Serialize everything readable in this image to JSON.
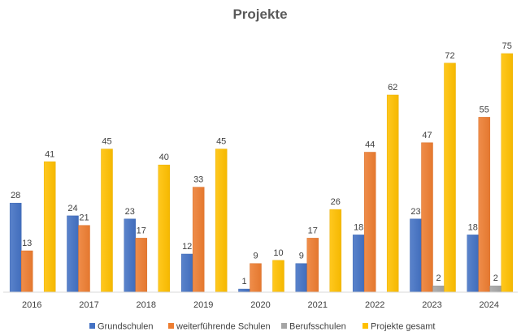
{
  "chart_data": {
    "type": "bar",
    "title": "Projekte",
    "categories": [
      "2016",
      "2017",
      "2018",
      "2019",
      "2020",
      "2021",
      "2022",
      "2023",
      "2024"
    ],
    "series": [
      {
        "name": "Grundschulen",
        "values": [
          28,
          24,
          23,
          12,
          1,
          9,
          18,
          23,
          18
        ],
        "color": "#4472C4"
      },
      {
        "name": "weiterführende Schulen",
        "values": [
          13,
          21,
          17,
          33,
          9,
          17,
          44,
          47,
          55
        ],
        "color": "#ED7D31"
      },
      {
        "name": "Berufsschulen",
        "values": [
          null,
          null,
          null,
          null,
          null,
          null,
          null,
          2,
          2
        ],
        "color": "#A5A5A5"
      },
      {
        "name": "Projekte gesamt",
        "values": [
          41,
          45,
          40,
          45,
          10,
          26,
          62,
          72,
          75
        ],
        "color": "#FFC000"
      }
    ],
    "ylim": [
      0,
      80
    ],
    "grid": false,
    "legend": "bottom",
    "data_labels": true
  }
}
